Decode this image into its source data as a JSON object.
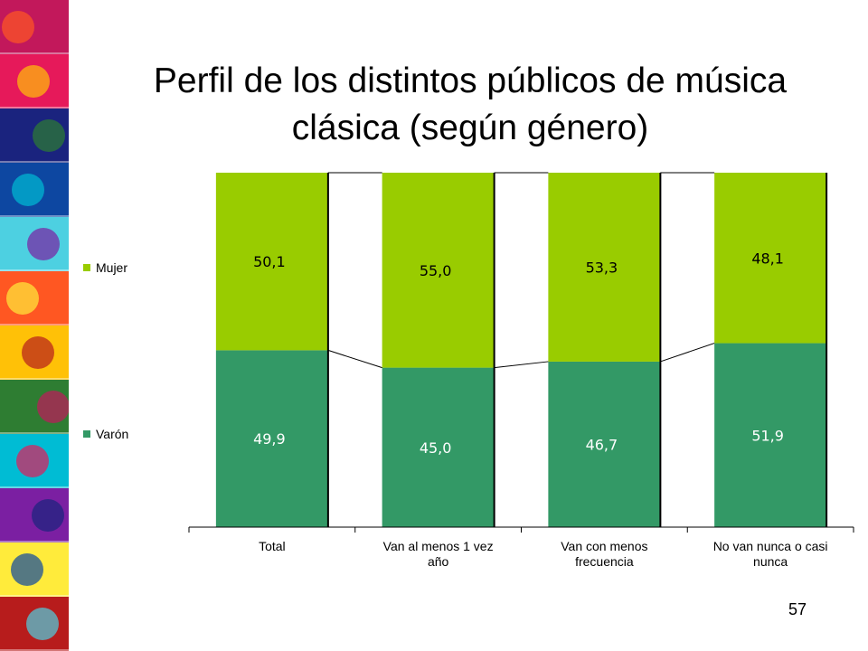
{
  "slide": {
    "title_line1": "Perfil de los distintos públicos de música",
    "title_line2": "clásica (según género)",
    "page_number": "57"
  },
  "chart_data": {
    "type": "bar",
    "stacked": true,
    "percent_stacked": true,
    "categories": [
      [
        "Total"
      ],
      [
        "Van al menos 1 vez",
        "año"
      ],
      [
        "Van con menos",
        "frecuencia"
      ],
      [
        "No van nunca o casi",
        "nunca"
      ]
    ],
    "series": [
      {
        "name": "Varón",
        "values": [
          49.9,
          45.0,
          46.7,
          51.9
        ],
        "labels": [
          "49,9",
          "45,0",
          "46,7",
          "51,9"
        ],
        "color": "#339966"
      },
      {
        "name": "Mujer",
        "values": [
          50.1,
          55.0,
          53.3,
          48.1
        ],
        "labels": [
          "50,1",
          "55,0",
          "53,3",
          "48,1"
        ],
        "color": "#99cc00"
      }
    ],
    "ylim": [
      0,
      100
    ],
    "legend_position": "left",
    "series_lines": true,
    "grid": false
  },
  "colors": {
    "strip_palette": [
      "#c2185b",
      "#e6195a",
      "#1a237e",
      "#0d47a1",
      "#4dd0e1",
      "#ff5722",
      "#ffc107",
      "#2e7d32",
      "#00bcd4",
      "#7b1fa2",
      "#ffeb3b",
      "#b71c1c"
    ]
  }
}
